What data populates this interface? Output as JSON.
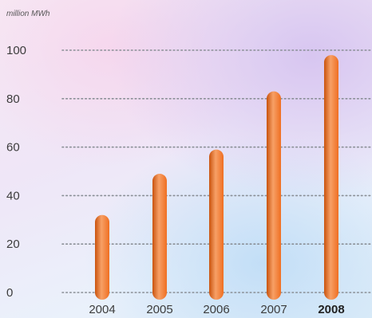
{
  "chart_data": {
    "type": "bar",
    "unit_label": "million MWh",
    "categories": [
      "2004",
      "2005",
      "2006",
      "2007",
      "2008"
    ],
    "values": [
      32,
      49,
      59,
      83,
      98
    ],
    "highlight_category": "2008",
    "ylim": [
      0,
      100
    ],
    "yticks": [
      "0",
      "20",
      "40",
      "60",
      "80",
      "100"
    ],
    "grid": true,
    "bar_color": "#ef6f22",
    "bar_highlight_color": "#f7a066",
    "bar_shade_color": "#c9530e"
  }
}
